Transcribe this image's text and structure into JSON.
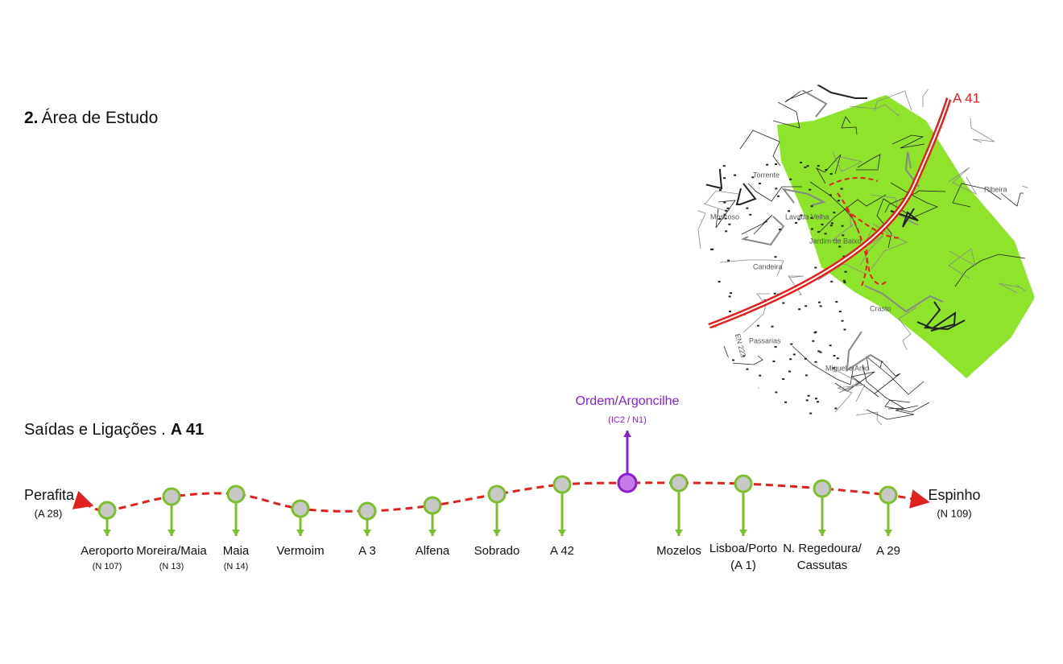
{
  "header": {
    "number": "2.",
    "title": "Área de Estudo"
  },
  "map": {
    "road_label": "A 41",
    "places": [
      "Torrente",
      "Moscoso",
      "Lavada Velha",
      "Jardim de Baixo",
      "Candeira",
      "Crasto",
      "Passarias",
      "Miguel o Anjo",
      "Ribeira",
      "EN 223"
    ]
  },
  "exits_section": {
    "title": "Saídas e Ligações .",
    "highway": "A 41",
    "start": {
      "name": "Perafita",
      "road": "(A 28)"
    },
    "end": {
      "name": "Espinho",
      "road": "(N 109)"
    },
    "highlight": {
      "name": "Ordem/Argoncilhe",
      "road": "(IC2 / N1)"
    },
    "exits": [
      {
        "name": "Aeroporto",
        "road": "(N 107)"
      },
      {
        "name": "Moreira/Maia",
        "road": "(N 13)"
      },
      {
        "name": "Maia",
        "road": "(N 14)"
      },
      {
        "name": "Vermoim"
      },
      {
        "name": "A 3"
      },
      {
        "name": "Alfena"
      },
      {
        "name": "Sobrado"
      },
      {
        "name": "A 42"
      },
      {
        "name": "Mozelos"
      },
      {
        "lines": [
          "Lisboa/Porto",
          "(A 1)"
        ]
      },
      {
        "lines": [
          "N. Regedoura/",
          "Cassutas"
        ]
      },
      {
        "name": "A 29"
      }
    ]
  }
}
